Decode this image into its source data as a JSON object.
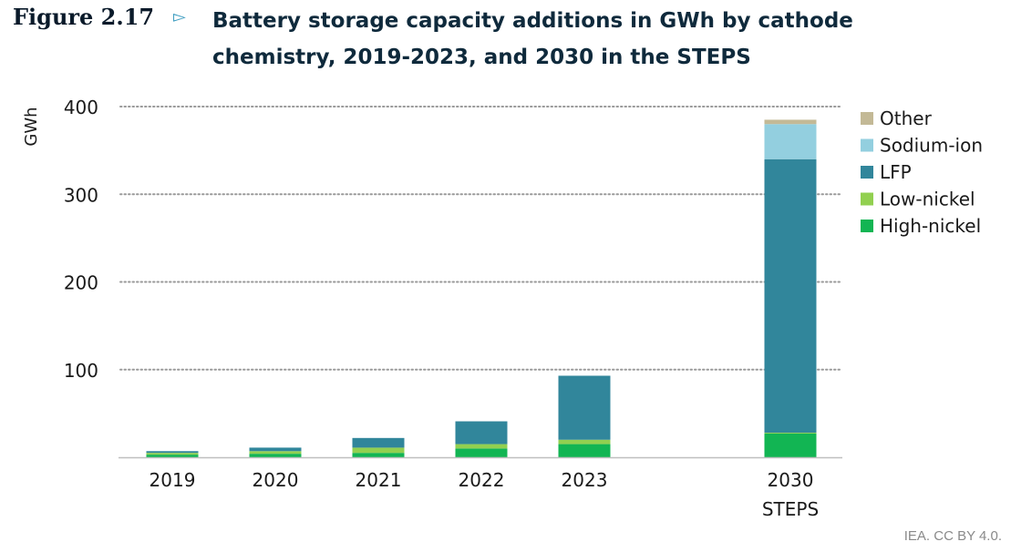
{
  "figure": {
    "label": "Figure 2.17",
    "marker": "▻",
    "title": "Battery storage capacity additions in GWh by cathode chemistry, 2019-2023, and 2030 in the STEPS"
  },
  "source_note": "IEA. CC BY 4.0.",
  "colors": {
    "Other": "#c3b996",
    "Sodium-ion": "#93cfdf",
    "LFP": "#31869b",
    "Low-nickel": "#92d050",
    "High-nickel": "#12b553",
    "grid": "#9a9a9a",
    "axis": "#bfbfbf",
    "text": "#1a1a1a"
  },
  "chart_data": {
    "type": "bar",
    "stacked": true,
    "ylabel": "GWh",
    "xlabel": "",
    "ylim": [
      0,
      400
    ],
    "yticks": [
      100,
      200,
      300,
      400
    ],
    "grid": true,
    "legend_position": "right",
    "categories": [
      "2019",
      "2020",
      "2021",
      "2022",
      "2023",
      "2030 STEPS"
    ],
    "category_lines": [
      [
        "2019"
      ],
      [
        "2020"
      ],
      [
        "2021"
      ],
      [
        "2022"
      ],
      [
        "2023"
      ],
      [
        "2030",
        "STEPS"
      ]
    ],
    "series": [
      {
        "name": "High-nickel",
        "values": [
          3,
          4,
          5,
          10,
          15,
          27
        ]
      },
      {
        "name": "Low-nickel",
        "values": [
          2,
          3,
          6,
          5,
          5,
          1
        ]
      },
      {
        "name": "LFP",
        "values": [
          2,
          4,
          11,
          26,
          73,
          312
        ]
      },
      {
        "name": "Sodium-ion",
        "values": [
          0,
          0,
          0,
          0,
          0,
          40
        ]
      },
      {
        "name": "Other",
        "values": [
          0,
          0,
          0,
          0,
          0,
          5
        ]
      }
    ],
    "legend_order": [
      "Other",
      "Sodium-ion",
      "LFP",
      "Low-nickel",
      "High-nickel"
    ]
  }
}
